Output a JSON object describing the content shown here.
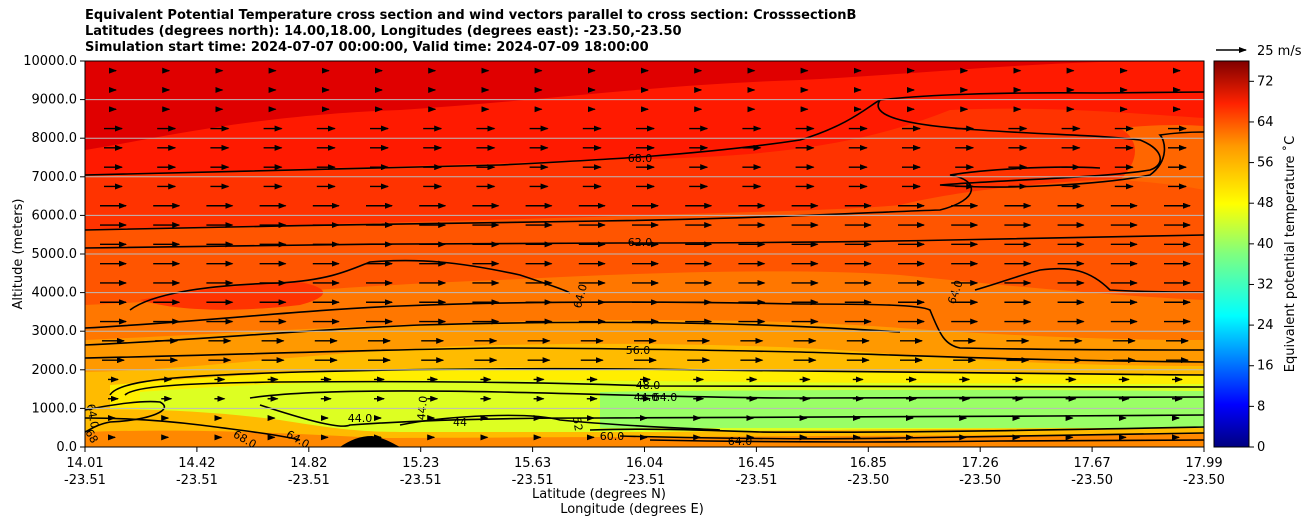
{
  "chart_data": {
    "type": "contour",
    "title_lines": [
      "Equivalent Potential Temperature cross section and wind vectors parallel to cross section: CrosssectionB",
      "Latitudes (degrees north): 14.00,18.00, Longitudes (degrees east): -23.50,-23.50",
      "Simulation start time: 2024-07-07 00:00:00, Valid time: 2024-07-09 18:00:00"
    ],
    "ylabel": "Altitude (meters)",
    "xlabel_lat": "Latitude (degrees N)",
    "xlabel_lon": "Longitude (degrees E)",
    "ylim": [
      0,
      10000
    ],
    "y_ticks": [
      "0.0",
      "1000.0",
      "2000.0",
      "3000.0",
      "4000.0",
      "5000.0",
      "6000.0",
      "7000.0",
      "8000.0",
      "9000.0",
      "10000.0"
    ],
    "x_ticks": [
      {
        "lat": "14.01",
        "lon": "-23.51"
      },
      {
        "lat": "14.42",
        "lon": "-23.51"
      },
      {
        "lat": "14.82",
        "lon": "-23.51"
      },
      {
        "lat": "15.23",
        "lon": "-23.51"
      },
      {
        "lat": "15.63",
        "lon": "-23.51"
      },
      {
        "lat": "16.04",
        "lon": "-23.51"
      },
      {
        "lat": "16.45",
        "lon": "-23.51"
      },
      {
        "lat": "16.85",
        "lon": "-23.50"
      },
      {
        "lat": "17.26",
        "lon": "-23.50"
      },
      {
        "lat": "17.67",
        "lon": "-23.50"
      },
      {
        "lat": "17.99",
        "lon": "-23.50"
      }
    ],
    "colorbar": {
      "label": "Equivalent potential temperature ˚C",
      "range": [
        0,
        76
      ],
      "ticks": [
        "0",
        "8",
        "16",
        "24",
        "32",
        "40",
        "48",
        "56",
        "64",
        "72"
      ]
    },
    "wind_key": "25 m/s",
    "contour_labels": [
      "68.0",
      "62.0",
      "64.0",
      "64.0",
      "56.0",
      "48.0",
      "44.0",
      "64.0",
      "44.0",
      "44.0",
      "44",
      "52",
      "60.0",
      "64.0",
      "64.0",
      "68.0",
      "64.0",
      "68"
    ],
    "colors": {
      "dark_red": "#e00000",
      "red": "#ff1a00",
      "red_orange": "#ff3300",
      "orange_red": "#ff5500",
      "orange": "#ff7700",
      "orange2": "#ff9900",
      "amber": "#ffbb00",
      "yellow": "#ffee00",
      "yellow_green": "#ddff22",
      "light_green": "#99ff66",
      "terrain": "#000000"
    }
  }
}
